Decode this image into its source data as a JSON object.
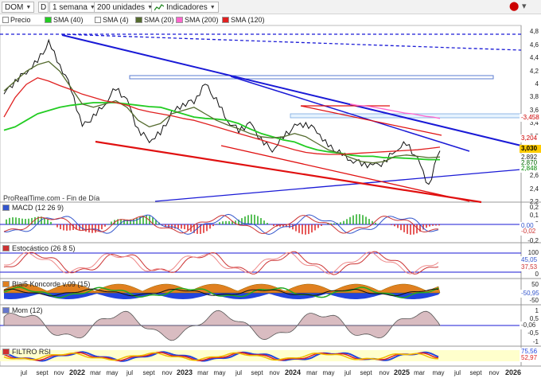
{
  "toolbar": {
    "symbol": "DOM",
    "d_label": "D",
    "period": "1 semana",
    "units": "200 unidades",
    "indicators": "Indicadores",
    "price_chart_icon": "price-chart-icon",
    "close_icon": "close-icon"
  },
  "legend": {
    "items": [
      {
        "label": "Precio",
        "color": "#ffffff"
      },
      {
        "label": "SMA (40)",
        "color": "#22cc22"
      },
      {
        "label": "SMA (4)",
        "color": "#ffffff"
      },
      {
        "label": "SMA (20)",
        "color": "#556b2f"
      },
      {
        "label": "SMA (200)",
        "color": "#ff66cc"
      },
      {
        "label": "SMA (120)",
        "color": "#e02020"
      }
    ]
  },
  "watermark": "ProRealTime.com - Fin de Día",
  "panels": {
    "macd": {
      "label": "MACD (12 26 9)",
      "color": "#3355cc",
      "ticks": [
        "0,2",
        "0,1",
        "0",
        "-0,1",
        "-0,2"
      ],
      "badges": [
        "0,00",
        "-0,02"
      ]
    },
    "stoch": {
      "label": "Estocástico (26 8 5)",
      "color": "#cc3333",
      "ticks": [
        "100",
        "50",
        "0"
      ],
      "badges": [
        "45,05",
        "37,53"
      ]
    },
    "blai": {
      "label": "Blai5 Koncorde v.09 (15)",
      "color": "#e08020",
      "ticks": [
        "50",
        "0",
        "-50"
      ],
      "badges": [
        "-50,95"
      ]
    },
    "mom": {
      "label": "Mom (12)",
      "color": "#6677cc",
      "ticks": [
        "1",
        "0,5",
        "0",
        "-0,5",
        "-1"
      ],
      "badges": [
        "-0,06"
      ]
    },
    "rsi": {
      "label": "FILTRO RSI",
      "color": "#d03030",
      "ticks": [
        "100",
        "50"
      ],
      "badges": [
        "75,56",
        "52,97"
      ]
    }
  },
  "price_axis": {
    "ticks": [
      "4,8",
      "4,6",
      "4,4",
      "4,2",
      "4",
      "3,8",
      "3,6",
      "3,4",
      "3,2",
      "3",
      "2,8",
      "2,6",
      "2,4",
      "2,2"
    ],
    "badges": [
      {
        "text": "-3,458",
        "bg": "#ffffff",
        "fg": "#cc0000"
      },
      {
        "text": "3,204",
        "bg": "#ffffff",
        "fg": "#cc0000"
      },
      {
        "text": "3,030",
        "bg": "#ffcc00",
        "fg": "#000000"
      },
      {
        "text": "2,892",
        "bg": "#ffffff",
        "fg": "#222222"
      },
      {
        "text": "2,870",
        "bg": "#ffffff",
        "fg": "#006600"
      },
      {
        "text": "2,848",
        "bg": "#ffffff",
        "fg": "#008800"
      }
    ]
  },
  "x_axis": {
    "labels": [
      "jul",
      "sept",
      "nov",
      "2022",
      "mar",
      "may",
      "jul",
      "sept",
      "nov",
      "2023",
      "mar",
      "may",
      "jul",
      "sept",
      "nov",
      "2024",
      "mar",
      "may",
      "jul",
      "sept",
      "nov",
      "2025",
      "mar",
      "may",
      "jul",
      "sept",
      "nov",
      "2026"
    ],
    "years": [
      "2022",
      "2023",
      "2024",
      "2025",
      "2026"
    ]
  },
  "chart_data": {
    "type": "line",
    "title": "DOM",
    "series": [
      {
        "name": "Precio",
        "values": [
          3.85,
          4.05,
          4.2,
          4.35,
          4.63,
          4.3,
          3.95,
          3.35,
          3.5,
          3.7,
          3.95,
          3.75,
          3.3,
          3.15,
          3.25,
          3.55,
          3.7,
          3.75,
          4.0,
          3.75,
          3.45,
          3.3,
          3.4,
          3.15,
          3.0,
          3.2,
          3.35,
          3.4,
          3.3,
          3.05,
          2.95,
          2.85,
          2.8,
          2.75,
          2.8,
          3.0,
          3.1,
          2.85,
          2.45,
          3.03
        ]
      },
      {
        "name": "SMA (40)",
        "values": [
          3.3,
          3.35,
          3.45,
          3.55,
          3.6,
          3.65,
          3.68,
          3.7,
          3.72,
          3.72,
          3.72,
          3.7,
          3.68,
          3.66,
          3.65,
          3.6,
          3.55,
          3.5,
          3.48,
          3.47,
          3.45,
          3.4,
          3.32,
          3.25,
          3.2,
          3.15,
          3.12,
          3.05,
          3.0,
          2.97,
          2.95,
          2.92,
          2.9,
          2.9,
          2.88,
          2.88,
          2.87,
          2.86,
          2.85,
          2.85
        ]
      },
      {
        "name": "SMA (20)",
        "values": [
          3.9,
          4.05,
          4.2,
          4.3,
          4.35,
          4.2,
          3.95,
          3.7,
          3.65,
          3.7,
          3.75,
          3.65,
          3.45,
          3.35,
          3.4,
          3.55,
          3.6,
          3.65,
          3.55,
          3.45,
          3.38,
          3.32,
          3.25,
          3.2,
          3.18,
          3.2,
          3.25,
          3.2,
          3.1,
          3.0,
          2.95,
          2.88,
          2.82,
          2.8,
          2.82,
          2.9,
          2.92,
          2.9,
          2.88,
          2.89
        ]
      },
      {
        "name": "SMA (120)",
        "values": [
          3.5,
          3.8,
          4.0,
          4.1,
          4.05,
          3.98,
          3.92,
          3.85,
          3.8,
          3.75,
          3.72,
          3.68,
          3.62,
          3.58,
          3.55,
          3.52,
          3.48,
          3.45,
          3.4,
          3.35,
          3.3,
          3.25,
          3.2,
          3.15,
          3.1,
          3.05,
          3.0,
          2.96,
          2.94,
          2.93,
          2.93,
          2.94,
          2.95,
          2.96,
          2.97,
          2.98,
          2.99,
          3.0,
          3.02,
          3.04
        ]
      },
      {
        "name": "SMA (200)",
        "values": [
          3.7,
          3.68,
          3.67,
          3.66,
          3.64,
          3.62,
          3.6,
          3.58,
          3.56,
          3.55,
          3.53,
          3.51,
          3.5,
          3.48
        ]
      }
    ],
    "ylim": [
      2.2,
      4.9
    ],
    "grid": false
  }
}
